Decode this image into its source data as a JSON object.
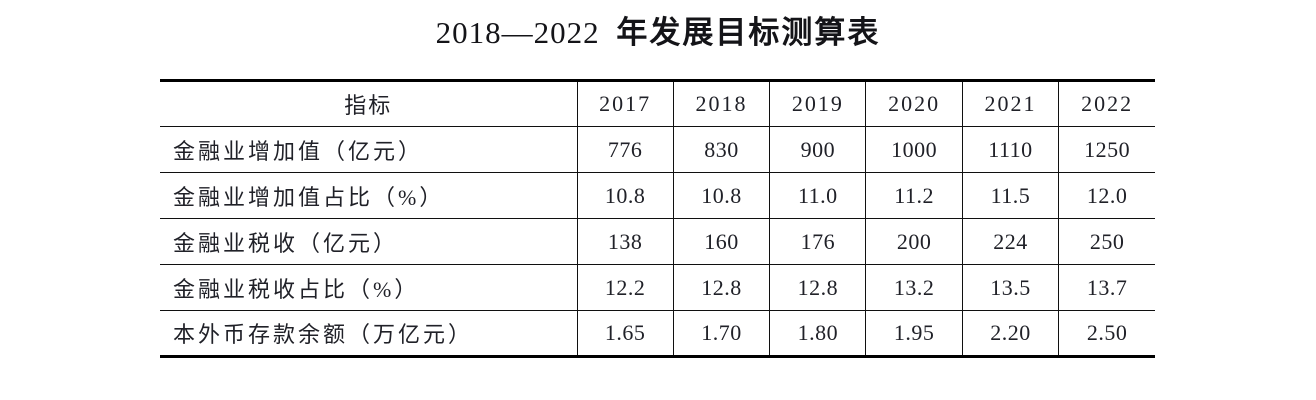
{
  "title": {
    "range": "2018—2022",
    "text": "年发展目标测算表"
  },
  "table": {
    "header": [
      "指标",
      "2017",
      "2018",
      "2019",
      "2020",
      "2021",
      "2022"
    ],
    "rows": [
      {
        "label": "金融业增加值（亿元）",
        "values": [
          "776",
          "830",
          "900",
          "1000",
          "1110",
          "1250"
        ]
      },
      {
        "label": "金融业增加值占比（%）",
        "values": [
          "10.8",
          "10.8",
          "11.0",
          "11.2",
          "11.5",
          "12.0"
        ]
      },
      {
        "label": "金融业税收（亿元）",
        "values": [
          "138",
          "160",
          "176",
          "200",
          "224",
          "250"
        ]
      },
      {
        "label": "金融业税收占比（%）",
        "values": [
          "12.2",
          "12.8",
          "12.8",
          "13.2",
          "13.5",
          "13.7"
        ]
      },
      {
        "label": "本外币存款余额（万亿元）",
        "values": [
          "1.65",
          "1.70",
          "1.80",
          "1.95",
          "2.20",
          "2.50"
        ]
      }
    ]
  },
  "colors": {
    "text": "#202128",
    "rule": "#000000",
    "background": "#ffffff"
  }
}
